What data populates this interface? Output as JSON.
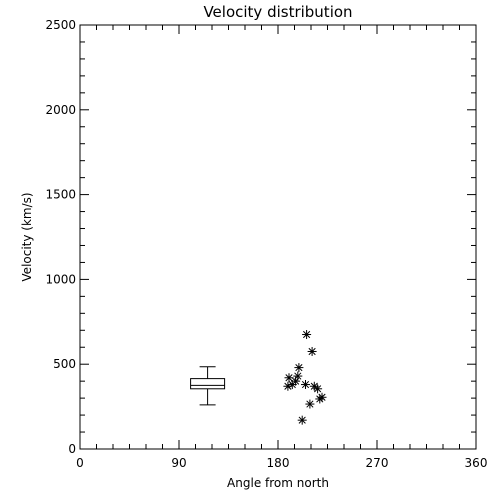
{
  "chart_data": {
    "type": "scatter",
    "title": "Velocity distribution",
    "xlabel": "Angle from north",
    "ylabel": "Velocity (km/s)",
    "xlim": [
      0,
      360
    ],
    "ylim": [
      0,
      2500
    ],
    "xticks": [
      "0",
      "90",
      "180",
      "270",
      "360"
    ],
    "yticks": [
      "0",
      "500",
      "1000",
      "1500",
      "2000",
      "2500"
    ],
    "grid": false,
    "marker": "asterisk",
    "points": [
      {
        "x": 189,
        "y": 370
      },
      {
        "x": 190,
        "y": 420
      },
      {
        "x": 193,
        "y": 380
      },
      {
        "x": 196,
        "y": 400
      },
      {
        "x": 198,
        "y": 430
      },
      {
        "x": 199,
        "y": 480
      },
      {
        "x": 202,
        "y": 170
      },
      {
        "x": 205,
        "y": 380
      },
      {
        "x": 206,
        "y": 675
      },
      {
        "x": 209,
        "y": 265
      },
      {
        "x": 211,
        "y": 575
      },
      {
        "x": 213,
        "y": 370
      },
      {
        "x": 216,
        "y": 355
      },
      {
        "x": 218,
        "y": 295
      },
      {
        "x": 220,
        "y": 305
      }
    ],
    "boxplot": {
      "x": 116,
      "min": 260,
      "q1": 355,
      "median": 375,
      "q3": 415,
      "max": 485
    }
  }
}
